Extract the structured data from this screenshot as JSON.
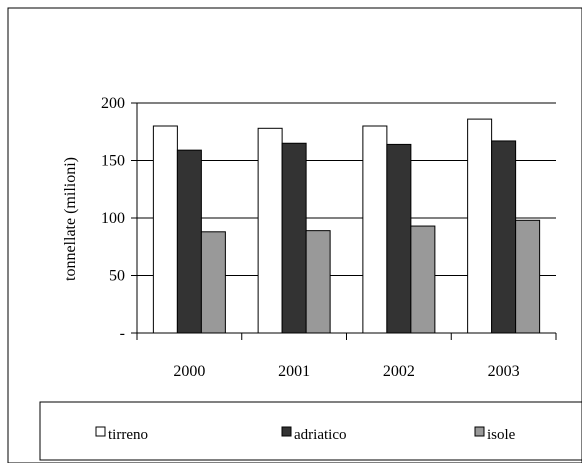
{
  "chart_data": {
    "type": "bar",
    "categories": [
      "2000",
      "2001",
      "2002",
      "2003"
    ],
    "series": [
      {
        "name": "tirreno",
        "values": [
          180,
          178,
          180,
          186
        ],
        "color": "#ffffff"
      },
      {
        "name": "adriatico",
        "values": [
          159,
          165,
          164,
          167
        ],
        "color": "#333333"
      },
      {
        "name": "isole",
        "values": [
          88,
          89,
          93,
          98
        ],
        "color": "#999999"
      }
    ],
    "ylabel": "tonnellate (milioni)",
    "ylim": [
      0,
      200
    ],
    "yticks": [
      0,
      50,
      100,
      150,
      200
    ],
    "ytick_labels": [
      "-",
      "50",
      "100",
      "150",
      "200"
    ],
    "grid": true,
    "legend": "bottom"
  }
}
